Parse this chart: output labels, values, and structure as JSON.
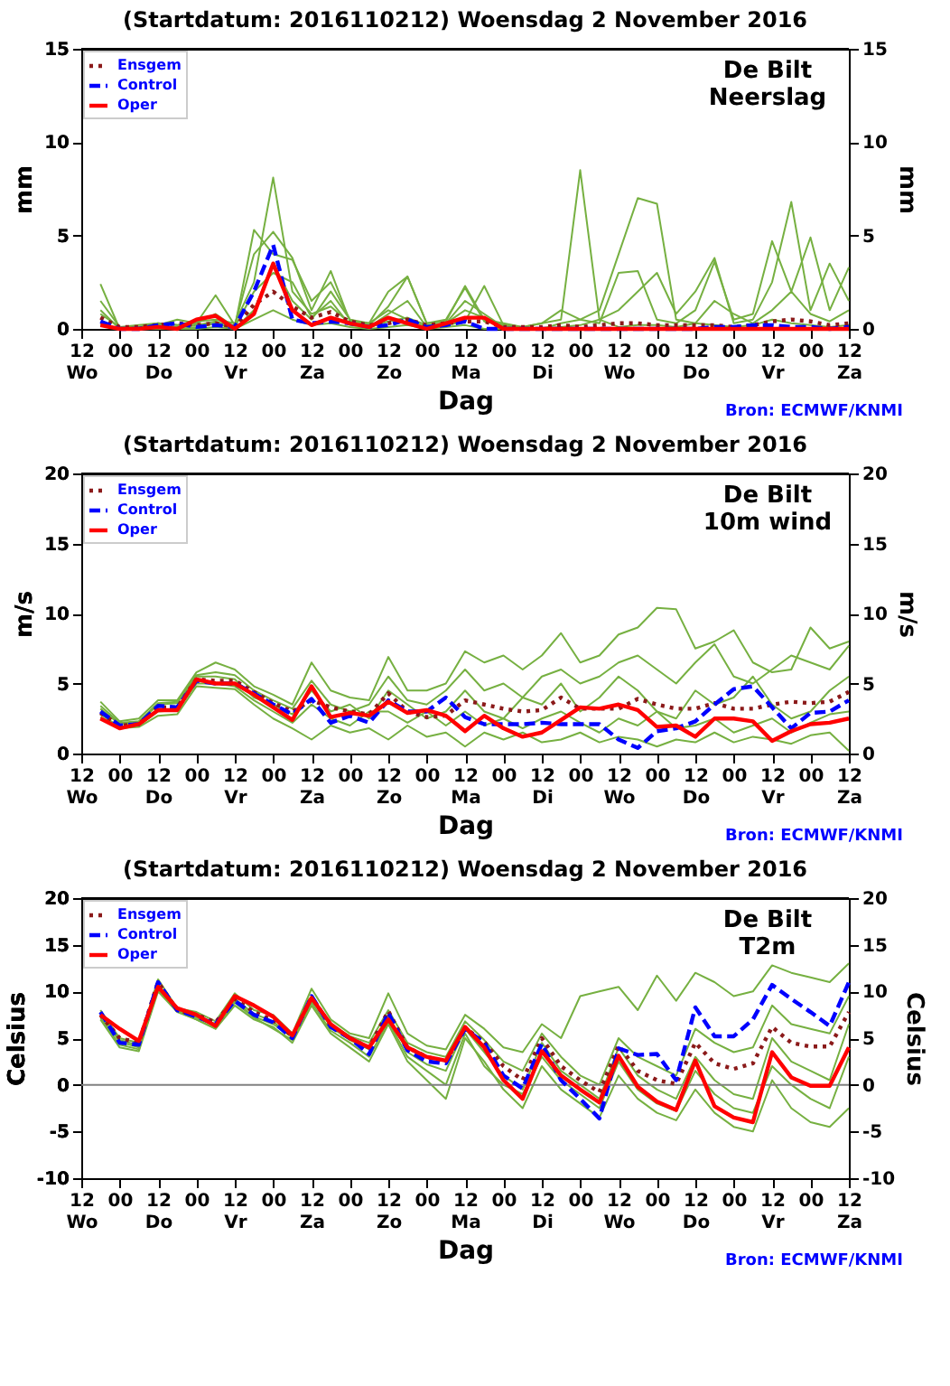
{
  "chart_data": [
    {
      "type": "line",
      "title": "(Startdatum: 2016110212) Woensdag  2 November 2016",
      "xlabel": "Dag",
      "ylabel": "mm",
      "y2label": "mm",
      "annotations": [
        "De Bilt\nNeerslag",
        "Bron: ECMWF/KNMI"
      ],
      "legend": "top left",
      "grid": false,
      "x": [
        "2016-11-02T18:00",
        "2016-11-03T00:00",
        "2016-11-03T06:00",
        "2016-11-03T12:00",
        "2016-11-03T18:00",
        "2016-11-04T00:00",
        "2016-11-04T06:00",
        "2016-11-04T12:00",
        "2016-11-04T18:00",
        "2016-11-05T00:00",
        "2016-11-05T06:00",
        "2016-11-05T12:00",
        "2016-11-05T18:00",
        "2016-11-06T00:00",
        "2016-11-06T06:00",
        "2016-11-06T12:00",
        "2016-11-06T18:00",
        "2016-11-07T00:00",
        "2016-11-07T06:00",
        "2016-11-07T12:00",
        "2016-11-07T18:00",
        "2016-11-08T00:00",
        "2016-11-08T06:00",
        "2016-11-08T12:00",
        "2016-11-08T18:00",
        "2016-11-09T00:00",
        "2016-11-09T06:00",
        "2016-11-09T12:00",
        "2016-11-09T18:00",
        "2016-11-10T00:00",
        "2016-11-10T06:00",
        "2016-11-10T12:00",
        "2016-11-10T18:00",
        "2016-11-11T00:00",
        "2016-11-11T06:00",
        "2016-11-11T12:00",
        "2016-11-11T18:00",
        "2016-11-12T00:00",
        "2016-11-12T06:00",
        "2016-11-12T12:00"
      ],
      "xlim": [
        "2016-11-02T12:00",
        "2016-11-12T12:00"
      ],
      "xticks": [
        {
          "value": "2016-11-02T12:00",
          "label": "12\nWo"
        },
        {
          "value": "2016-11-03T00:00",
          "label": "00"
        },
        {
          "value": "2016-11-03T12:00",
          "label": "12\nDo"
        },
        {
          "value": "2016-11-04T00:00",
          "label": "00"
        },
        {
          "value": "2016-11-04T12:00",
          "label": "12\nVr"
        },
        {
          "value": "2016-11-05T00:00",
          "label": "00"
        },
        {
          "value": "2016-11-05T12:00",
          "label": "12\nZa"
        },
        {
          "value": "2016-11-06T00:00",
          "label": "00"
        },
        {
          "value": "2016-11-06T12:00",
          "label": "12\nZo"
        },
        {
          "value": "2016-11-07T00:00",
          "label": "00"
        },
        {
          "value": "2016-11-07T12:00",
          "label": "12\nMa"
        },
        {
          "value": "2016-11-08T00:00",
          "label": "00"
        },
        {
          "value": "2016-11-08T12:00",
          "label": "12\nDi"
        },
        {
          "value": "2016-11-09T00:00",
          "label": "00"
        },
        {
          "value": "2016-11-09T12:00",
          "label": "12\nWo"
        },
        {
          "value": "2016-11-10T00:00",
          "label": "00"
        },
        {
          "value": "2016-11-10T12:00",
          "label": "12\nDo"
        },
        {
          "value": "2016-11-11T00:00",
          "label": "00"
        },
        {
          "value": "2016-11-11T12:00",
          "label": "12\nVr"
        },
        {
          "value": "2016-11-12T00:00",
          "label": "00"
        },
        {
          "value": "2016-11-12T12:00",
          "label": "12\nZa"
        }
      ],
      "ylim": [
        0,
        15
      ],
      "yticks": [
        0,
        5,
        10,
        15
      ],
      "y2lim": [
        0,
        15
      ],
      "y2ticks": [
        0,
        5,
        10,
        15
      ],
      "series": [
        {
          "color": "#76b041",
          "line_style": "solid",
          "values": [
            1.5,
            0.1,
            0.2,
            0.3,
            0.2,
            0.4,
            0.5,
            0.3,
            2.5,
            8.1,
            2.0,
            0.8,
            1.2,
            0.3,
            0.1,
            0.4,
            0.6,
            0.2,
            0.3,
            1.0,
            0.6,
            0.2,
            0,
            0,
            0,
            0,
            0,
            0,
            0,
            0,
            0,
            0,
            0,
            0,
            0,
            0,
            0,
            0,
            0,
            0
          ]
        },
        {
          "color": "#76b041",
          "line_style": "solid",
          "values": [
            2.4,
            0,
            0,
            0,
            0,
            0.1,
            0.3,
            0,
            1.0,
            3.5,
            1.5,
            0.5,
            2.0,
            0.5,
            0.3,
            1.0,
            0.5,
            0.1,
            0.2,
            0.4,
            2.3,
            0.2,
            0.1,
            0.3,
            0.5,
            8.5,
            0.5,
            0.1,
            0.2,
            0.2,
            0.1,
            0.3,
            0.2,
            0.1,
            0.2,
            0.5,
            0.3,
            0.2,
            0.1,
            0.2
          ]
        },
        {
          "color": "#76b041",
          "line_style": "solid",
          "values": [
            1.0,
            0,
            0.1,
            0.2,
            0.5,
            0.3,
            1.8,
            0.2,
            4.0,
            5.2,
            3.8,
            1.0,
            3.1,
            0.4,
            0.3,
            2.0,
            2.8,
            0.3,
            0.5,
            2.2,
            0.4,
            0.2,
            0,
            0,
            0.3,
            0.5,
            1.0,
            4.0,
            7.0,
            6.7,
            0.5,
            0.3,
            1.5,
            0.8,
            0.3,
            1.0,
            2.0,
            0.8,
            0.4,
            1.0
          ]
        },
        {
          "color": "#76b041",
          "line_style": "solid",
          "values": [
            0.3,
            0,
            0,
            0.1,
            0.1,
            0.2,
            0.4,
            0.1,
            2.0,
            3.0,
            2.5,
            0.6,
            1.5,
            0.2,
            0.1,
            0.8,
            1.5,
            0.1,
            0.3,
            1.5,
            0.8,
            0.1,
            0,
            0,
            0.1,
            0.2,
            0.5,
            1.0,
            2.0,
            3.0,
            0.8,
            2.0,
            3.8,
            0.3,
            0.5,
            2.5,
            6.8,
            1.0,
            3.5,
            1.5
          ]
        },
        {
          "color": "#76b041",
          "line_style": "solid",
          "values": [
            0.8,
            0.1,
            0.1,
            0.3,
            0.2,
            0.3,
            0.8,
            0.1,
            5.3,
            4.0,
            3.7,
            1.5,
            2.5,
            0.5,
            0.2,
            1.2,
            2.8,
            0.3,
            0.4,
            2.3,
            0.5,
            0.3,
            0.1,
            0.3,
            1.0,
            0.5,
            0.3,
            3.0,
            3.1,
            0.5,
            0.3,
            1.0,
            3.6,
            0.5,
            0.8,
            4.7,
            2.0,
            4.9,
            1.0,
            3.3
          ]
        },
        {
          "color": "#76b041",
          "line_style": "solid",
          "values": [
            0.2,
            0,
            0,
            0,
            0,
            0,
            0.1,
            0,
            0.5,
            1.0,
            0.5,
            0.2,
            0.3,
            0.1,
            0,
            0.1,
            0.2,
            0,
            0.1,
            0.2,
            0,
            0,
            0,
            0,
            0,
            0,
            0,
            0,
            0,
            0,
            0,
            0,
            0,
            0,
            0,
            0,
            0,
            0,
            0,
            0
          ]
        },
        {
          "name": "Ensgem",
          "color": "#8b1a1a",
          "line_style": "dotted",
          "values": [
            0.6,
            0.1,
            0.1,
            0.2,
            0.3,
            0.2,
            0.3,
            0.1,
            1.3,
            2.0,
            1.2,
            0.6,
            0.9,
            0.4,
            0.2,
            0.3,
            0.5,
            0.2,
            0.3,
            0.4,
            0.4,
            0.1,
            0.1,
            0.1,
            0.2,
            0.1,
            0.2,
            0.3,
            0.3,
            0.2,
            0.2,
            0.2,
            0.2,
            0.1,
            0.2,
            0.4,
            0.5,
            0.4,
            0.2,
            0.3
          ]
        },
        {
          "name": "Control",
          "color": "#0000ff",
          "line_style": "dashed",
          "values": [
            0.4,
            0,
            0,
            0.2,
            0.3,
            0.1,
            0.2,
            0.1,
            2.0,
            4.5,
            0.5,
            0.3,
            0.4,
            0.3,
            0.1,
            0.2,
            0.5,
            0.1,
            0.2,
            0.4,
            0,
            0,
            0,
            0,
            0,
            0,
            0,
            0,
            0,
            0,
            0,
            0,
            0.1,
            0.1,
            0.2,
            0.2,
            0.1,
            0.1,
            0,
            0.1
          ]
        },
        {
          "name": "Oper",
          "color": "#ff0000",
          "line_style": "solid",
          "values": [
            0.2,
            0,
            0,
            0.1,
            0,
            0.5,
            0.7,
            0,
            0.8,
            3.5,
            1.0,
            0.2,
            0.6,
            0.3,
            0.1,
            0.6,
            0.3,
            0,
            0.3,
            0.6,
            0.6,
            0,
            0,
            0,
            0,
            0,
            0,
            0,
            0,
            0,
            0,
            0,
            0,
            0,
            0,
            0,
            0,
            0,
            0,
            0
          ]
        }
      ]
    },
    {
      "type": "line",
      "title": "(Startdatum: 2016110212) Woensdag  2 November 2016",
      "xlabel": "Dag",
      "ylabel": "m/s",
      "y2label": "m/s",
      "annotations": [
        "De Bilt\n10m wind",
        "Bron: ECMWF/KNMI"
      ],
      "legend": "top left",
      "grid": false,
      "x": [
        "2016-11-02T18:00",
        "2016-11-03T00:00",
        "2016-11-03T06:00",
        "2016-11-03T12:00",
        "2016-11-03T18:00",
        "2016-11-04T00:00",
        "2016-11-04T06:00",
        "2016-11-04T12:00",
        "2016-11-04T18:00",
        "2016-11-05T00:00",
        "2016-11-05T06:00",
        "2016-11-05T12:00",
        "2016-11-05T18:00",
        "2016-11-06T00:00",
        "2016-11-06T06:00",
        "2016-11-06T12:00",
        "2016-11-06T18:00",
        "2016-11-07T00:00",
        "2016-11-07T06:00",
        "2016-11-07T12:00",
        "2016-11-07T18:00",
        "2016-11-08T00:00",
        "2016-11-08T06:00",
        "2016-11-08T12:00",
        "2016-11-08T18:00",
        "2016-11-09T00:00",
        "2016-11-09T06:00",
        "2016-11-09T12:00",
        "2016-11-09T18:00",
        "2016-11-10T00:00",
        "2016-11-10T06:00",
        "2016-11-10T12:00",
        "2016-11-10T18:00",
        "2016-11-11T00:00",
        "2016-11-11T06:00",
        "2016-11-11T12:00",
        "2016-11-11T18:00",
        "2016-11-12T00:00",
        "2016-11-12T06:00",
        "2016-11-12T12:00"
      ],
      "xlim": [
        "2016-11-02T12:00",
        "2016-11-12T12:00"
      ],
      "xticks": [
        {
          "value": "2016-11-02T12:00",
          "label": "12\nWo"
        },
        {
          "value": "2016-11-03T00:00",
          "label": "00"
        },
        {
          "value": "2016-11-03T12:00",
          "label": "12\nDo"
        },
        {
          "value": "2016-11-04T00:00",
          "label": "00"
        },
        {
          "value": "2016-11-04T12:00",
          "label": "12\nVr"
        },
        {
          "value": "2016-11-05T00:00",
          "label": "00"
        },
        {
          "value": "2016-11-05T12:00",
          "label": "12\nZa"
        },
        {
          "value": "2016-11-06T00:00",
          "label": "00"
        },
        {
          "value": "2016-11-06T12:00",
          "label": "12\nZo"
        },
        {
          "value": "2016-11-07T00:00",
          "label": "00"
        },
        {
          "value": "2016-11-07T12:00",
          "label": "12\nMa"
        },
        {
          "value": "2016-11-08T00:00",
          "label": "00"
        },
        {
          "value": "2016-11-08T12:00",
          "label": "12\nDi"
        },
        {
          "value": "2016-11-09T00:00",
          "label": "00"
        },
        {
          "value": "2016-11-09T12:00",
          "label": "12\nWo"
        },
        {
          "value": "2016-11-10T00:00",
          "label": "00"
        },
        {
          "value": "2016-11-10T12:00",
          "label": "12\nDo"
        },
        {
          "value": "2016-11-11T00:00",
          "label": "00"
        },
        {
          "value": "2016-11-11T12:00",
          "label": "12\nVr"
        },
        {
          "value": "2016-11-12T00:00",
          "label": "00"
        },
        {
          "value": "2016-11-12T12:00",
          "label": "12\nZa"
        }
      ],
      "ylim": [
        0,
        20
      ],
      "yticks": [
        0,
        5,
        10,
        15,
        20
      ],
      "y2lim": [
        0,
        20
      ],
      "y2ticks": [
        0,
        5,
        10,
        15,
        20
      ],
      "series": [
        {
          "color": "#76b041",
          "line_style": "solid",
          "values": [
            3.7,
            2.3,
            2.5,
            3.8,
            3.8,
            5.8,
            6.5,
            6.0,
            4.8,
            4.2,
            3.5,
            6.5,
            4.5,
            4.0,
            3.8,
            6.9,
            4.5,
            4.5,
            5.0,
            7.3,
            6.5,
            7.0,
            6.0,
            7.0,
            8.6,
            6.5,
            7.0,
            8.5,
            9.0,
            10.4,
            10.3,
            7.5,
            8.0,
            8.8,
            6.5,
            5.8,
            6.0,
            9.0,
            7.5,
            8.0
          ]
        },
        {
          "color": "#76b041",
          "line_style": "solid",
          "values": [
            2.6,
            1.8,
            1.9,
            2.7,
            2.8,
            4.8,
            4.7,
            4.6,
            3.5,
            2.5,
            1.8,
            1.0,
            2.0,
            1.5,
            1.8,
            1.0,
            2.0,
            1.2,
            1.5,
            0.5,
            1.5,
            1.0,
            1.5,
            0.8,
            1.0,
            1.5,
            0.8,
            1.2,
            1.0,
            0.5,
            1.0,
            0.8,
            1.5,
            0.8,
            1.2,
            1.0,
            0.7,
            1.3,
            1.5,
            0.2
          ]
        },
        {
          "color": "#76b041",
          "line_style": "solid",
          "values": [
            3.2,
            2.1,
            2.2,
            3.5,
            3.6,
            5.5,
            5.5,
            5.3,
            4.0,
            3.5,
            2.8,
            4.5,
            3.0,
            3.5,
            2.5,
            4.5,
            3.5,
            2.5,
            3.0,
            4.5,
            3.0,
            2.5,
            4.0,
            3.5,
            5.0,
            3.0,
            4.0,
            5.5,
            4.5,
            3.0,
            2.5,
            4.5,
            3.5,
            4.0,
            5.5,
            3.5,
            2.5,
            3.0,
            4.5,
            5.5
          ]
        },
        {
          "color": "#76b041",
          "line_style": "solid",
          "values": [
            2.8,
            1.9,
            2.0,
            3.0,
            3.1,
            5.0,
            5.0,
            4.8,
            3.8,
            3.0,
            2.2,
            3.5,
            2.5,
            2.0,
            3.0,
            3.0,
            2.2,
            3.0,
            2.0,
            3.0,
            2.0,
            2.5,
            1.8,
            2.5,
            3.0,
            2.2,
            1.5,
            2.5,
            2.0,
            3.0,
            1.8,
            2.0,
            2.5,
            1.5,
            2.0,
            2.5,
            1.5,
            2.2,
            2.8,
            3.0
          ]
        },
        {
          "color": "#76b041",
          "line_style": "solid",
          "values": [
            3.4,
            2.2,
            2.3,
            3.6,
            3.7,
            5.6,
            5.8,
            5.6,
            4.5,
            3.8,
            3.2,
            5.2,
            3.5,
            3.0,
            3.5,
            5.5,
            3.8,
            3.5,
            4.5,
            6.0,
            4.5,
            5.0,
            4.0,
            5.5,
            6.0,
            5.0,
            5.5,
            6.5,
            7.0,
            6.0,
            5.0,
            6.5,
            7.8,
            5.5,
            5.0,
            6.0,
            7.0,
            6.5,
            6.0,
            7.7
          ]
        },
        {
          "name": "Ensgem",
          "color": "#8b1a1a",
          "line_style": "dotted",
          "values": [
            2.9,
            2.0,
            2.1,
            3.3,
            3.3,
            5.3,
            5.2,
            5.2,
            4.4,
            3.6,
            3.0,
            3.8,
            3.3,
            3.0,
            2.8,
            4.3,
            3.0,
            2.6,
            2.7,
            3.8,
            3.5,
            3.2,
            3.0,
            3.1,
            4.0,
            3.2,
            3.2,
            3.2,
            3.9,
            3.5,
            3.2,
            3.2,
            3.6,
            3.2,
            3.2,
            3.5,
            3.7,
            3.6,
            3.7,
            4.4
          ]
        },
        {
          "name": "Control",
          "color": "#0000ff",
          "line_style": "dashed",
          "values": [
            3.0,
            2.0,
            2.1,
            3.4,
            3.3,
            5.2,
            5.0,
            5.0,
            4.3,
            3.5,
            2.8,
            3.9,
            2.2,
            2.7,
            2.2,
            3.8,
            3.0,
            3.0,
            4.0,
            2.6,
            2.1,
            2.1,
            2.1,
            2.2,
            2.1,
            2.1,
            2.1,
            1.0,
            0.4,
            1.6,
            1.8,
            2.3,
            3.5,
            4.6,
            4.8,
            3.3,
            1.8,
            2.9,
            3.0,
            3.8
          ]
        },
        {
          "name": "Oper",
          "color": "#ff0000",
          "line_style": "solid",
          "values": [
            2.5,
            1.8,
            2.1,
            3.1,
            3.1,
            5.3,
            5.0,
            5.0,
            4.2,
            3.3,
            2.4,
            4.8,
            2.6,
            2.9,
            2.7,
            3.7,
            2.9,
            3.1,
            2.7,
            1.6,
            2.7,
            1.8,
            1.2,
            1.5,
            2.4,
            3.3,
            3.2,
            3.5,
            3.1,
            1.9,
            2.0,
            1.2,
            2.5,
            2.5,
            2.3,
            0.9,
            1.6,
            2.1,
            2.2,
            2.5
          ]
        }
      ]
    },
    {
      "type": "line",
      "title": "(Startdatum: 2016110212) Woensdag  2 November 2016",
      "xlabel": "Dag",
      "ylabel": "Celsius",
      "y2label": "Celsius",
      "annotations": [
        "De Bilt\nT2m",
        "Bron: ECMWF/KNMI"
      ],
      "legend": "top left",
      "grid": false,
      "x": [
        "2016-11-02T18:00",
        "2016-11-03T00:00",
        "2016-11-03T06:00",
        "2016-11-03T12:00",
        "2016-11-03T18:00",
        "2016-11-04T00:00",
        "2016-11-04T06:00",
        "2016-11-04T12:00",
        "2016-11-04T18:00",
        "2016-11-05T00:00",
        "2016-11-05T06:00",
        "2016-11-05T12:00",
        "2016-11-05T18:00",
        "2016-11-06T00:00",
        "2016-11-06T06:00",
        "2016-11-06T12:00",
        "2016-11-06T18:00",
        "2016-11-07T00:00",
        "2016-11-07T06:00",
        "2016-11-07T12:00",
        "2016-11-07T18:00",
        "2016-11-08T00:00",
        "2016-11-08T06:00",
        "2016-11-08T12:00",
        "2016-11-08T18:00",
        "2016-11-09T00:00",
        "2016-11-09T06:00",
        "2016-11-09T12:00",
        "2016-11-09T18:00",
        "2016-11-10T00:00",
        "2016-11-10T06:00",
        "2016-11-10T12:00",
        "2016-11-10T18:00",
        "2016-11-11T00:00",
        "2016-11-11T06:00",
        "2016-11-11T12:00",
        "2016-11-11T18:00",
        "2016-11-12T00:00",
        "2016-11-12T06:00",
        "2016-11-12T12:00"
      ],
      "xlim": [
        "2016-11-02T12:00",
        "2016-11-12T12:00"
      ],
      "xticks": [
        {
          "value": "2016-11-02T12:00",
          "label": "12\nWo"
        },
        {
          "value": "2016-11-03T00:00",
          "label": "00"
        },
        {
          "value": "2016-11-03T12:00",
          "label": "12\nDo"
        },
        {
          "value": "2016-11-04T00:00",
          "label": "00"
        },
        {
          "value": "2016-11-04T12:00",
          "label": "12\nVr"
        },
        {
          "value": "2016-11-05T00:00",
          "label": "00"
        },
        {
          "value": "2016-11-05T12:00",
          "label": "12\nZa"
        },
        {
          "value": "2016-11-06T00:00",
          "label": "00"
        },
        {
          "value": "2016-11-06T12:00",
          "label": "12\nZo"
        },
        {
          "value": "2016-11-07T00:00",
          "label": "00"
        },
        {
          "value": "2016-11-07T12:00",
          "label": "12\nMa"
        },
        {
          "value": "2016-11-08T00:00",
          "label": "00"
        },
        {
          "value": "2016-11-08T12:00",
          "label": "12\nDi"
        },
        {
          "value": "2016-11-09T00:00",
          "label": "00"
        },
        {
          "value": "2016-11-09T12:00",
          "label": "12\nWo"
        },
        {
          "value": "2016-11-10T00:00",
          "label": "00"
        },
        {
          "value": "2016-11-10T12:00",
          "label": "12\nDo"
        },
        {
          "value": "2016-11-11T00:00",
          "label": "00"
        },
        {
          "value": "2016-11-11T12:00",
          "label": "12\nVr"
        },
        {
          "value": "2016-11-12T00:00",
          "label": "00"
        },
        {
          "value": "2016-11-12T12:00",
          "label": "12\nZa"
        }
      ],
      "ylim": [
        -10,
        20
      ],
      "yticks": [
        -10,
        -5,
        0,
        5,
        10,
        15,
        20
      ],
      "y2lim": [
        -10,
        20
      ],
      "y2ticks": [
        -10,
        -5,
        0,
        5,
        10,
        15,
        20
      ],
      "ref_lines": [
        {
          "axis": "y",
          "value": 0,
          "color": "#808080"
        }
      ],
      "series": [
        {
          "color": "#76b041",
          "line_style": "solid",
          "values": [
            8.0,
            5.0,
            4.5,
            11.3,
            8.2,
            7.8,
            6.8,
            9.8,
            8.0,
            7.5,
            5.5,
            10.3,
            7.0,
            5.5,
            5.0,
            9.8,
            5.5,
            4.2,
            3.8,
            7.5,
            6.0,
            4.0,
            3.5,
            6.5,
            5.0,
            9.5,
            10.0,
            10.5,
            8.0,
            11.7,
            9.0,
            12.0,
            11.0,
            9.5,
            10.0,
            12.8,
            12.0,
            11.5,
            11.0,
            13.0
          ]
        },
        {
          "color": "#76b041",
          "line_style": "solid",
          "values": [
            7.0,
            4.0,
            3.6,
            10.0,
            7.8,
            7.0,
            6.0,
            8.5,
            7.0,
            6.2,
            4.5,
            8.5,
            5.5,
            4.0,
            2.5,
            6.5,
            2.5,
            0.5,
            -1.5,
            5.0,
            2.5,
            -0.5,
            -2.5,
            2.0,
            -0.5,
            -2.0,
            -3.5,
            1.0,
            -1.5,
            -3.0,
            -3.8,
            -0.5,
            -3.0,
            -4.5,
            -5.0,
            0.5,
            -2.5,
            -4.0,
            -4.5,
            -2.5
          ]
        },
        {
          "color": "#76b041",
          "line_style": "solid",
          "values": [
            7.5,
            4.8,
            4.2,
            10.8,
            8.0,
            7.4,
            6.5,
            9.2,
            7.6,
            6.8,
            5.0,
            9.5,
            6.2,
            4.8,
            3.8,
            7.5,
            3.5,
            2.2,
            1.5,
            6.0,
            3.5,
            1.0,
            -0.5,
            4.5,
            1.5,
            0.0,
            -1.5,
            4.0,
            1.0,
            -0.5,
            -1.5,
            3.0,
            0.5,
            -1.0,
            -1.5,
            5.0,
            2.5,
            1.5,
            0.5,
            6.5
          ]
        },
        {
          "color": "#76b041",
          "line_style": "solid",
          "values": [
            7.8,
            4.6,
            4.0,
            10.5,
            8.1,
            7.2,
            6.3,
            9.0,
            7.3,
            6.5,
            5.2,
            9.0,
            6.5,
            5.2,
            4.5,
            8.0,
            4.5,
            3.5,
            3.0,
            6.8,
            4.8,
            2.5,
            1.5,
            5.5,
            3.0,
            1.0,
            0.0,
            5.0,
            3.0,
            2.0,
            1.0,
            6.0,
            4.5,
            3.5,
            4.0,
            8.5,
            6.5,
            6.0,
            5.5,
            9.5
          ]
        },
        {
          "color": "#76b041",
          "line_style": "solid",
          "values": [
            7.2,
            4.3,
            3.8,
            10.2,
            7.9,
            7.0,
            6.0,
            8.8,
            7.2,
            6.0,
            4.8,
            8.8,
            5.8,
            4.5,
            3.0,
            6.8,
            3.0,
            1.5,
            0.0,
            5.5,
            2.0,
            0.0,
            -1.0,
            3.0,
            0.5,
            -1.0,
            -2.5,
            2.5,
            -0.5,
            -2.0,
            -2.8,
            1.5,
            -1.0,
            -2.5,
            -3.0,
            2.0,
            0.0,
            -1.5,
            -2.5,
            3.0
          ]
        },
        {
          "name": "Ensgem",
          "color": "#8b1a1a",
          "line_style": "dotted",
          "values": [
            7.5,
            5.0,
            4.5,
            11.0,
            8.0,
            7.5,
            6.7,
            9.2,
            7.8,
            6.9,
            5.2,
            9.4,
            6.3,
            5.0,
            4.0,
            7.9,
            4.0,
            3.0,
            2.5,
            6.1,
            4.6,
            2.0,
            0.5,
            5.0,
            2.0,
            0.5,
            -0.8,
            4.2,
            1.5,
            0.5,
            0.1,
            4.5,
            2.3,
            1.7,
            2.3,
            6.2,
            4.5,
            4.1,
            4.1,
            7.8
          ]
        },
        {
          "name": "Control",
          "color": "#0000ff",
          "line_style": "dashed",
          "values": [
            7.8,
            4.5,
            4.3,
            11.0,
            8.0,
            7.3,
            6.5,
            9.0,
            7.5,
            6.7,
            5.0,
            9.5,
            6.2,
            5.0,
            3.3,
            7.7,
            3.7,
            2.5,
            2.3,
            6.0,
            4.5,
            1.0,
            -0.4,
            4.4,
            0.5,
            -1.5,
            -3.6,
            3.9,
            3.2,
            3.3,
            0.5,
            8.3,
            5.2,
            5.2,
            7.0,
            10.7,
            9.2,
            7.8,
            6.3,
            11.0
          ]
        },
        {
          "name": "Oper",
          "color": "#ff0000",
          "line_style": "solid",
          "values": [
            7.5,
            6.0,
            4.7,
            10.5,
            8.2,
            7.5,
            6.3,
            9.5,
            8.5,
            7.3,
            5.3,
            9.3,
            6.5,
            5.0,
            4.0,
            7.0,
            4.0,
            3.0,
            2.6,
            6.2,
            4.0,
            0.5,
            -1.5,
            3.6,
            1.0,
            -0.5,
            -1.9,
            3.1,
            -0.2,
            -1.8,
            -2.7,
            2.6,
            -2.3,
            -3.5,
            -4.0,
            3.5,
            0.8,
            -0.1,
            -0.1,
            4.0
          ]
        }
      ]
    }
  ]
}
